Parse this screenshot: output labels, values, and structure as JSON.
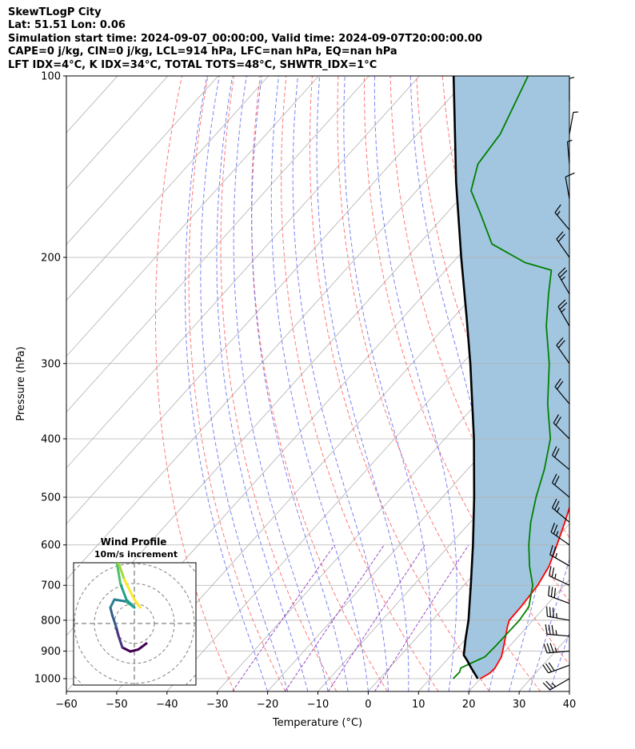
{
  "header": {
    "line1": "SkewTLogP City",
    "line2": "Lat: 51.51   Lon: 0.06",
    "line3": "Simulation start time: 2024-09-07_00:00:00, Valid time: 2024-09-07T20:00:00.00",
    "line4": "CAPE=0 j/kg, CIN=0 j/kg, LCL=914 hPa, LFC=nan hPa, EQ=nan hPa",
    "line5": "LFT IDX=4°C, K IDX=34°C, TOTAL TOTS=48°C, SHWTR_IDX=1°C"
  },
  "chart_data": {
    "type": "line",
    "title": "SkewTLogP City",
    "xlabel": "Temperature (°C)",
    "ylabel": "Pressure (hPa)",
    "xlim": [
      -60,
      40
    ],
    "ylim": [
      1050,
      100
    ],
    "x_ticks": [
      -60,
      -50,
      -40,
      -30,
      -20,
      -10,
      0,
      10,
      20,
      30,
      40
    ],
    "x_tick_labels": [
      "−60",
      "−50",
      "−40",
      "−30",
      "−20",
      "−10",
      "0",
      "10",
      "20",
      "30",
      "40"
    ],
    "y_ticks": [
      100,
      200,
      300,
      400,
      500,
      600,
      700,
      800,
      900,
      1000
    ],
    "y_tick_labels": [
      "100",
      "200",
      "300",
      "400",
      "500",
      "600",
      "700",
      "800",
      "900",
      "1000"
    ],
    "series": [
      {
        "name": "Temperature",
        "color": "#ff0000",
        "points": [
          [
            1000,
            20
          ],
          [
            980,
            20.9
          ],
          [
            960,
            21
          ],
          [
            920,
            20.3
          ],
          [
            880,
            18.7
          ],
          [
            820,
            16.1
          ],
          [
            800,
            15.3
          ],
          [
            760,
            15.2
          ],
          [
            700,
            14.7
          ],
          [
            650,
            13.5
          ],
          [
            600,
            11.3
          ],
          [
            550,
            8.8
          ],
          [
            500,
            5.9
          ],
          [
            450,
            2.4
          ],
          [
            400,
            -1.1
          ],
          [
            350,
            -6.6
          ],
          [
            300,
            -13.7
          ],
          [
            270,
            -18.1
          ],
          [
            250,
            -20.2
          ],
          [
            230,
            -20.2
          ],
          [
            210,
            -28
          ],
          [
            200,
            -31.4
          ],
          [
            185,
            -34.6
          ],
          [
            170,
            -39.3
          ],
          [
            155,
            -45.5
          ],
          [
            140,
            -51.3
          ],
          [
            125,
            -56
          ],
          [
            110,
            -60.3
          ],
          [
            100,
            -62.9
          ]
        ]
      },
      {
        "name": "Dewpoint",
        "color": "#008000",
        "points": [
          [
            1000,
            14.6
          ],
          [
            975,
            14.7
          ],
          [
            960,
            14.2
          ],
          [
            945,
            15.2
          ],
          [
            920,
            17
          ],
          [
            880,
            17.2
          ],
          [
            800,
            17.3
          ],
          [
            760,
            16.8
          ],
          [
            700,
            13.7
          ],
          [
            650,
            9.6
          ],
          [
            600,
            5.7
          ],
          [
            550,
            2
          ],
          [
            500,
            -1.4
          ],
          [
            450,
            -4.7
          ],
          [
            400,
            -9
          ],
          [
            350,
            -15.8
          ],
          [
            300,
            -22.7
          ],
          [
            260,
            -30
          ],
          [
            230,
            -35.3
          ],
          [
            210,
            -39
          ],
          [
            204,
            -45.6
          ],
          [
            190,
            -55.5
          ],
          [
            170,
            -62.9
          ],
          [
            155,
            -69.2
          ],
          [
            140,
            -72.6
          ],
          [
            125,
            -73.5
          ],
          [
            100,
            -78.4
          ]
        ]
      },
      {
        "name": "Parcel profile",
        "color": "#000000",
        "points": [
          [
            1000,
            19.5
          ],
          [
            960,
            16.3
          ],
          [
            930,
            13.9
          ],
          [
            914,
            12.5
          ],
          [
            860,
            10
          ],
          [
            800,
            7.2
          ],
          [
            700,
            1.4
          ],
          [
            600,
            -5.4
          ],
          [
            500,
            -13.7
          ],
          [
            400,
            -24.2
          ],
          [
            300,
            -38.4
          ],
          [
            250,
            -47.7
          ],
          [
            200,
            -59.2
          ],
          [
            150,
            -73.7
          ],
          [
            100,
            -93.2
          ]
        ]
      }
    ],
    "shaded_region": {
      "name": "CAPE/CIN area",
      "color": "#a2c6e0"
    },
    "reference_lines": {
      "isotherms": {
        "color": "#b0b0b0"
      },
      "dry_adiabats": {
        "color": "#ff6060"
      },
      "moist_adiabats": {
        "color": "#5a64ee"
      },
      "mixing_ratio": {
        "color": "#8a2bbe"
      }
    },
    "wind_barbs": [
      {
        "p": 1000,
        "speed": 25,
        "dir": 240
      },
      {
        "p": 950,
        "speed": 30,
        "dir": 250
      },
      {
        "p": 900,
        "speed": 35,
        "dir": 265
      },
      {
        "p": 850,
        "speed": 35,
        "dir": 275
      },
      {
        "p": 800,
        "speed": 35,
        "dir": 280
      },
      {
        "p": 750,
        "speed": 30,
        "dir": 290
      },
      {
        "p": 700,
        "speed": 25,
        "dir": 295
      },
      {
        "p": 650,
        "speed": 25,
        "dir": 300
      },
      {
        "p": 600,
        "speed": 25,
        "dir": 305
      },
      {
        "p": 550,
        "speed": 25,
        "dir": 310
      },
      {
        "p": 500,
        "speed": 20,
        "dir": 310
      },
      {
        "p": 450,
        "speed": 20,
        "dir": 310
      },
      {
        "p": 400,
        "speed": 20,
        "dir": 315
      },
      {
        "p": 350,
        "speed": 20,
        "dir": 320
      },
      {
        "p": 300,
        "speed": 20,
        "dir": 325
      },
      {
        "p": 260,
        "speed": 25,
        "dir": 330
      },
      {
        "p": 230,
        "speed": 25,
        "dir": 330
      },
      {
        "p": 200,
        "speed": 20,
        "dir": 325
      },
      {
        "p": 180,
        "speed": 15,
        "dir": 320
      },
      {
        "p": 160,
        "speed": 10,
        "dir": 350
      },
      {
        "p": 140,
        "speed": 5,
        "dir": 355
      },
      {
        "p": 125,
        "speed": 5,
        "dir": 10
      },
      {
        "p": 110,
        "speed": 5,
        "dir": 0
      }
    ]
  },
  "hodograph": {
    "title": "Wind Profile",
    "subtitle": "10m/s increment",
    "ring_increment_ms": 10,
    "points": [
      [
        3,
        -5
      ],
      [
        1,
        -6.5
      ],
      [
        -1,
        -7
      ],
      [
        -3,
        -6
      ],
      [
        -4,
        -3
      ],
      [
        -4.5,
        -1
      ],
      [
        -5.5,
        2
      ],
      [
        -6,
        4
      ],
      [
        -5,
        6
      ],
      [
        -2,
        5.5
      ],
      [
        0,
        4
      ],
      [
        -2,
        6
      ],
      [
        -3.5,
        10
      ],
      [
        -4,
        13
      ],
      [
        -4.5,
        16
      ],
      [
        -5,
        18
      ],
      [
        -2.5,
        11
      ],
      [
        0,
        6
      ],
      [
        1.5,
        4
      ]
    ]
  }
}
